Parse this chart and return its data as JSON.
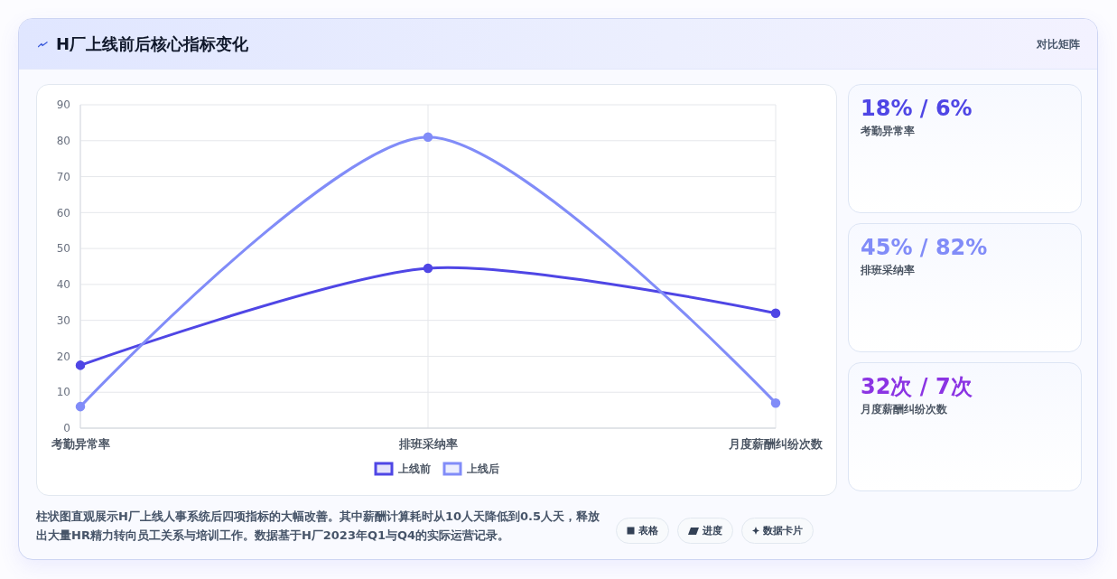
{
  "chart_data": [
    {
      "type": "line",
      "title": "H厂上线前后核心指标变化",
      "categories": [
        "考勤异常率",
        "排班采纳率",
        "月度薪酬纠纷次数"
      ],
      "series": [
        {
          "name": "上线前",
          "color": "#4f46e5",
          "values": [
            17.5,
            44.5,
            32
          ]
        },
        {
          "name": "上线后",
          "color": "#818cf8",
          "values": [
            6,
            81,
            7
          ]
        }
      ],
      "ylim": [
        0,
        90
      ],
      "yticks": [
        0,
        10,
        20,
        30,
        40,
        50,
        60,
        70,
        80,
        90
      ],
      "grid": true,
      "legend": "bottom",
      "marker": "circle",
      "line_style": "solid",
      "annotations": [
        "对比矩阵",
        "柱状图直观展示H厂上线人事系统后四项指标的大幅改善。其中薪酬计算耗时从10人天降低到0.5人天，释放出大量HR精力转向员工关系与培训工作。数据基于H厂2023年Q1与Q4的实际运营记录。",
        "表格",
        "进度",
        "数据卡片"
      ]
    },
    {
      "type": "other",
      "annotations": [
        "18% / 6%",
        "考勤异常率",
        "45% / 82%",
        "排班采纳率",
        "32次 / 7次",
        "月度薪酬纠纷次数"
      ],
      "colors": [
        "#4f46e5",
        "#818cf8",
        "#8b34e3"
      ]
    }
  ]
}
